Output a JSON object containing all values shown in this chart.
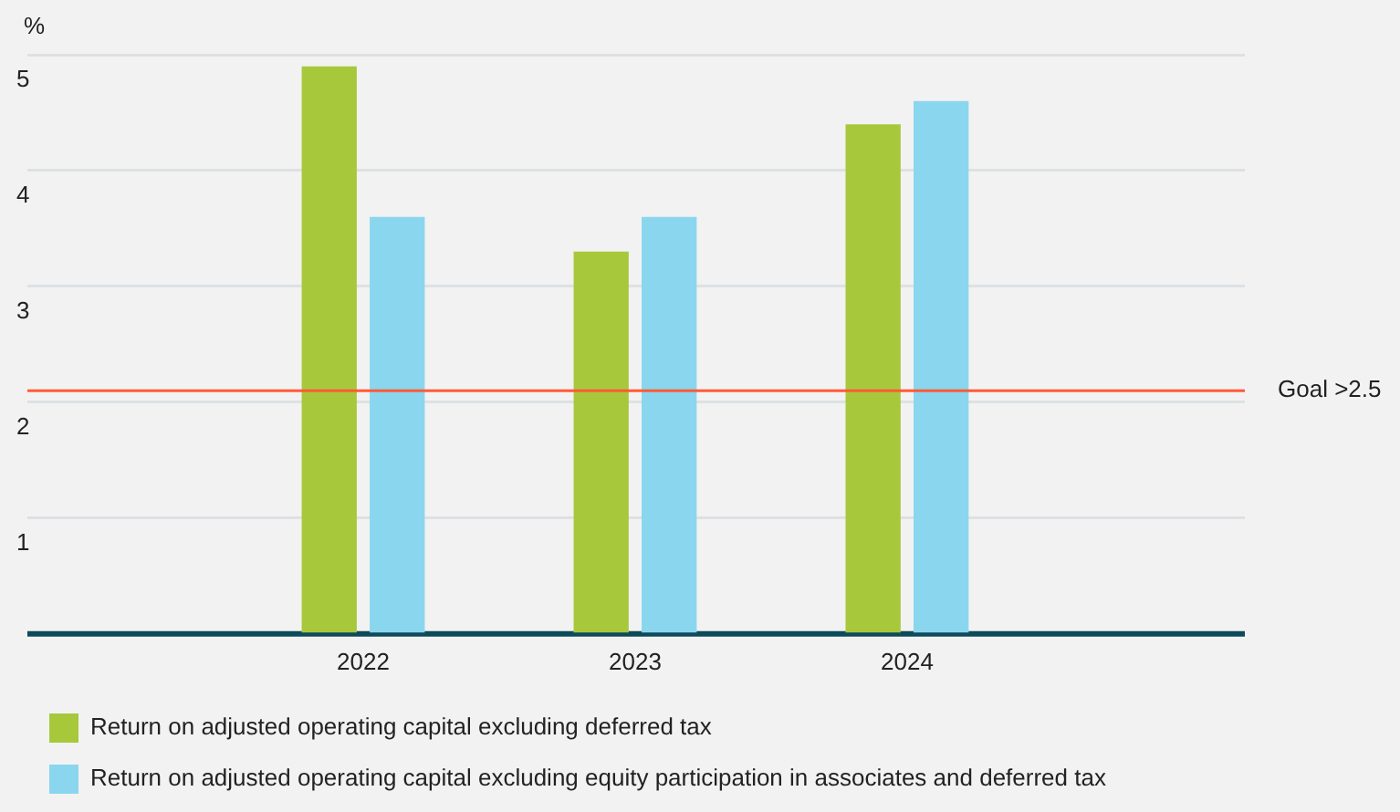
{
  "chart_data": {
    "type": "bar",
    "ylabel": "%",
    "categories": [
      "2022",
      "2023",
      "2024"
    ],
    "series": [
      {
        "name": "Return on adjusted operating capital excluding deferred tax",
        "color": "#a8c83c",
        "values": [
          4.9,
          3.3,
          4.4
        ]
      },
      {
        "name": "Return on adjusted operating capital excluding equity participation in associates and deferred tax",
        "color": "#8ad6ee",
        "values": [
          3.6,
          3.6,
          4.6
        ]
      }
    ],
    "ylim": [
      0,
      5
    ],
    "yticks": [
      {
        "value": 0,
        "label": null
      },
      1,
      2,
      3,
      4,
      5
    ],
    "ref_lines": [
      {
        "axis": "y",
        "value": 2.1,
        "label": "Goal >2.5",
        "color": "#ff5a36"
      }
    ],
    "grid": "y",
    "legend": "bottom"
  }
}
